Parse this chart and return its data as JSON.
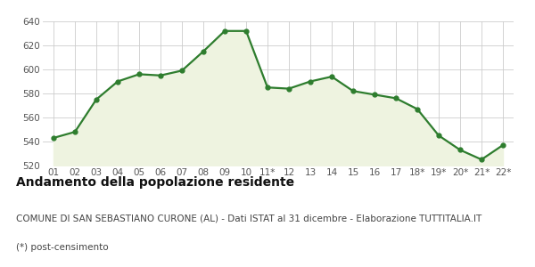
{
  "x_labels": [
    "01",
    "02",
    "03",
    "04",
    "05",
    "06",
    "07",
    "08",
    "09",
    "10",
    "11*",
    "12",
    "13",
    "14",
    "15",
    "16",
    "17",
    "18*",
    "19*",
    "20*",
    "21*",
    "22*"
  ],
  "y_values": [
    543,
    548,
    575,
    590,
    596,
    595,
    599,
    615,
    632,
    632,
    585,
    584,
    590,
    594,
    582,
    579,
    576,
    567,
    545,
    533,
    525,
    537
  ],
  "ylim": [
    520,
    640
  ],
  "yticks": [
    520,
    540,
    560,
    580,
    600,
    620,
    640
  ],
  "line_color": "#2e7d2e",
  "fill_color": "#eef3e0",
  "marker": "o",
  "marker_size": 3.5,
  "line_width": 1.6,
  "title": "Andamento della popolazione residente",
  "subtitle": "COMUNE DI SAN SEBASTIANO CURONE (AL) - Dati ISTAT al 31 dicembre - Elaborazione TUTTITALIA.IT",
  "footnote": "(*) post-censimento",
  "bg_color": "#ffffff",
  "grid_color": "#cccccc",
  "title_fontsize": 10,
  "subtitle_fontsize": 7.5,
  "footnote_fontsize": 7.5,
  "tick_fontsize": 7.5
}
